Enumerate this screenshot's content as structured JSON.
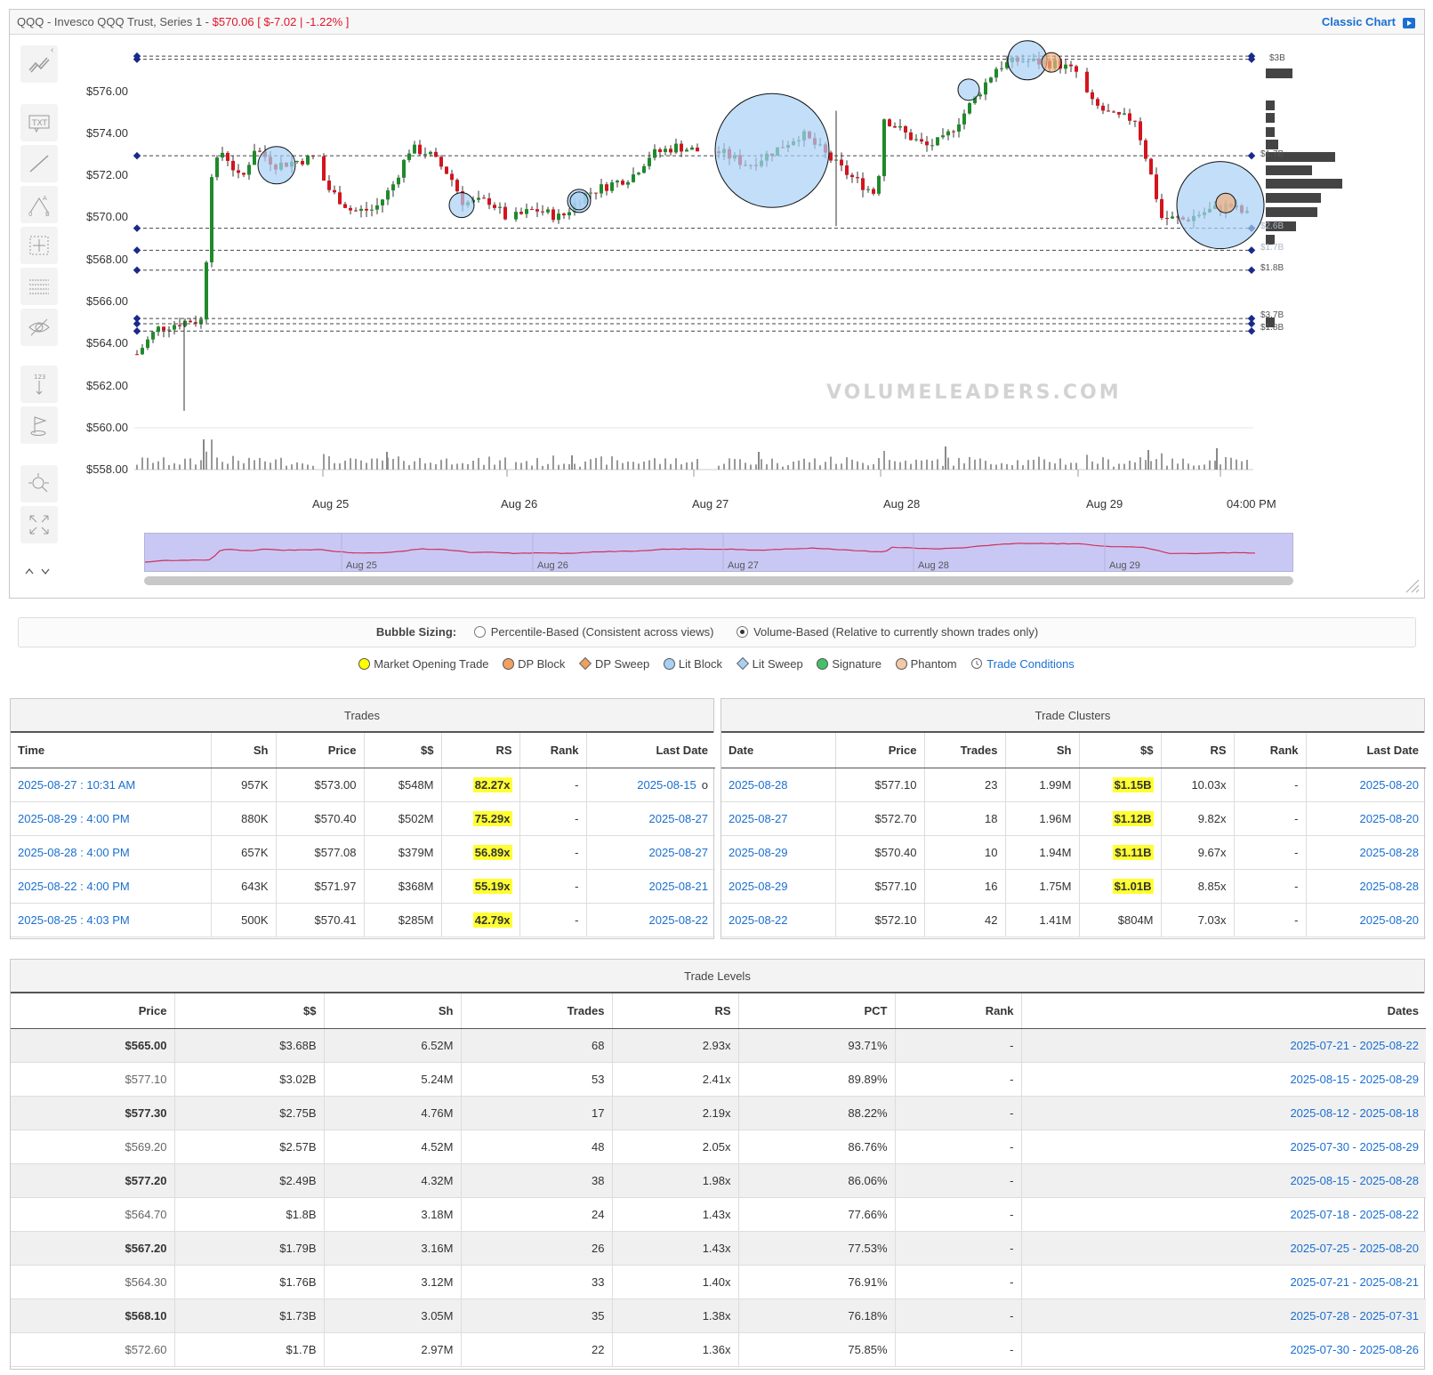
{
  "chart": {
    "title_prefix": "QQQ - Invesco QQQ Trust, Series 1 - ",
    "title_price": "$570.06",
    "title_change": "[ $-7.02 | -1.22% ]",
    "classic_chart_label": "Classic Chart",
    "watermark": "VOLUMELEADERS.COM",
    "price_axis": [
      "$576.00",
      "$574.00",
      "$572.00",
      "$570.00",
      "$568.00",
      "$566.00",
      "$564.00",
      "$562.00",
      "$560.00",
      "$558.00"
    ],
    "date_axis": [
      "Aug 25",
      "Aug 26",
      "Aug 27",
      "Aug 28",
      "Aug 29",
      "04:00 PM"
    ],
    "navigator_dates": [
      "Aug 25",
      "Aug 26",
      "Aug 27",
      "Aug 28",
      "Aug 29"
    ],
    "level_tags": [
      "$3B",
      "$1.7B",
      "$2.6B",
      "$1.7B",
      "$1.8B",
      "$3.7B",
      "$1.8B"
    ]
  },
  "bubble_sizing": {
    "label": "Bubble Sizing:",
    "options": [
      "Percentile-Based (Consistent across views)",
      "Volume-Based (Relative to currently shown trades only)"
    ],
    "selected": 1
  },
  "legend": {
    "items": [
      {
        "label": "Market Opening Trade",
        "color": "#ffff00",
        "shape": "circle"
      },
      {
        "label": "DP Block",
        "color": "#f0a060",
        "shape": "circle"
      },
      {
        "label": "DP Sweep",
        "color": "#f0a060",
        "shape": "diamond"
      },
      {
        "label": "Lit Block",
        "color": "#a8d0f5",
        "shape": "circle"
      },
      {
        "label": "Lit Sweep",
        "color": "#a8d0f5",
        "shape": "diamond"
      },
      {
        "label": "Signature",
        "color": "#44c06a",
        "shape": "circle"
      },
      {
        "label": "Phantom",
        "color": "#f3c8a8",
        "shape": "circle"
      }
    ],
    "conditions_link": "Trade Conditions"
  },
  "trades": {
    "title": "Trades",
    "columns": [
      "Time",
      "Sh",
      "Price",
      "$$",
      "RS",
      "Rank",
      "Last Date"
    ],
    "rows": [
      {
        "time": "2025-08-27 : 10:31 AM",
        "sh": "957K",
        "price": "$573.00",
        "dollars": "$548M",
        "rs": "82.27x",
        "rank": "-",
        "last": "2025-08-15",
        "flag": "o"
      },
      {
        "time": "2025-08-29 : 4:00 PM",
        "sh": "880K",
        "price": "$570.40",
        "dollars": "$502M",
        "rs": "75.29x",
        "rank": "-",
        "last": "2025-08-27",
        "flag": ""
      },
      {
        "time": "2025-08-28 : 4:00 PM",
        "sh": "657K",
        "price": "$577.08",
        "dollars": "$379M",
        "rs": "56.89x",
        "rank": "-",
        "last": "2025-08-27",
        "flag": ""
      },
      {
        "time": "2025-08-22 : 4:00 PM",
        "sh": "643K",
        "price": "$571.97",
        "dollars": "$368M",
        "rs": "55.19x",
        "rank": "-",
        "last": "2025-08-21",
        "flag": ""
      },
      {
        "time": "2025-08-25 : 4:03 PM",
        "sh": "500K",
        "price": "$570.41",
        "dollars": "$285M",
        "rs": "42.79x",
        "rank": "-",
        "last": "2025-08-22",
        "flag": ""
      }
    ]
  },
  "clusters": {
    "title": "Trade Clusters",
    "columns": [
      "Date",
      "Price",
      "Trades",
      "Sh",
      "$$",
      "RS",
      "Rank",
      "Last Date"
    ],
    "rows": [
      {
        "date": "2025-08-28",
        "price": "$577.10",
        "trades": "23",
        "sh": "1.99M",
        "dollars": "$1.15B",
        "hl": true,
        "rs": "10.03x",
        "rank": "-",
        "last": "2025-08-20"
      },
      {
        "date": "2025-08-27",
        "price": "$572.70",
        "trades": "18",
        "sh": "1.96M",
        "dollars": "$1.12B",
        "hl": true,
        "rs": "9.82x",
        "rank": "-",
        "last": "2025-08-20"
      },
      {
        "date": "2025-08-29",
        "price": "$570.40",
        "trades": "10",
        "sh": "1.94M",
        "dollars": "$1.11B",
        "hl": true,
        "rs": "9.67x",
        "rank": "-",
        "last": "2025-08-28"
      },
      {
        "date": "2025-08-29",
        "price": "$577.10",
        "trades": "16",
        "sh": "1.75M",
        "dollars": "$1.01B",
        "hl": true,
        "rs": "8.85x",
        "rank": "-",
        "last": "2025-08-28"
      },
      {
        "date": "2025-08-22",
        "price": "$572.10",
        "trades": "42",
        "sh": "1.41M",
        "dollars": "$804M",
        "hl": false,
        "rs": "7.03x",
        "rank": "-",
        "last": "2025-08-20"
      }
    ]
  },
  "levels": {
    "title": "Trade Levels",
    "columns": [
      "Price",
      "$$",
      "Sh",
      "Trades",
      "RS",
      "PCT",
      "Rank",
      "Dates"
    ],
    "rows": [
      {
        "price": "$565.00",
        "dollars": "$3.68B",
        "sh": "6.52M",
        "trades": "68",
        "rs": "2.93x",
        "pct": "93.71%",
        "rank": "-",
        "dates": "2025-07-21 - 2025-08-22"
      },
      {
        "price": "$577.10",
        "dollars": "$3.02B",
        "sh": "5.24M",
        "trades": "53",
        "rs": "2.41x",
        "pct": "89.89%",
        "rank": "-",
        "dates": "2025-08-15 - 2025-08-29"
      },
      {
        "price": "$577.30",
        "dollars": "$2.75B",
        "sh": "4.76M",
        "trades": "17",
        "rs": "2.19x",
        "pct": "88.22%",
        "rank": "-",
        "dates": "2025-08-12 - 2025-08-18"
      },
      {
        "price": "$569.20",
        "dollars": "$2.57B",
        "sh": "4.52M",
        "trades": "48",
        "rs": "2.05x",
        "pct": "86.76%",
        "rank": "-",
        "dates": "2025-07-30 - 2025-08-29"
      },
      {
        "price": "$577.20",
        "dollars": "$2.49B",
        "sh": "4.32M",
        "trades": "38",
        "rs": "1.98x",
        "pct": "86.06%",
        "rank": "-",
        "dates": "2025-08-15 - 2025-08-28"
      },
      {
        "price": "$564.70",
        "dollars": "$1.8B",
        "sh": "3.18M",
        "trades": "24",
        "rs": "1.43x",
        "pct": "77.66%",
        "rank": "-",
        "dates": "2025-07-18 - 2025-08-22"
      },
      {
        "price": "$567.20",
        "dollars": "$1.79B",
        "sh": "3.16M",
        "trades": "26",
        "rs": "1.43x",
        "pct": "77.53%",
        "rank": "-",
        "dates": "2025-07-25 - 2025-08-20"
      },
      {
        "price": "$564.30",
        "dollars": "$1.76B",
        "sh": "3.12M",
        "trades": "33",
        "rs": "1.40x",
        "pct": "76.91%",
        "rank": "-",
        "dates": "2025-07-21 - 2025-08-21"
      },
      {
        "price": "$568.10",
        "dollars": "$1.73B",
        "sh": "3.05M",
        "trades": "35",
        "rs": "1.38x",
        "pct": "76.18%",
        "rank": "-",
        "dates": "2025-07-28 - 2025-07-31"
      },
      {
        "price": "$572.60",
        "dollars": "$1.7B",
        "sh": "2.97M",
        "trades": "22",
        "rs": "1.36x",
        "pct": "75.85%",
        "rank": "-",
        "dates": "2025-07-30 - 2025-08-26"
      }
    ]
  }
}
